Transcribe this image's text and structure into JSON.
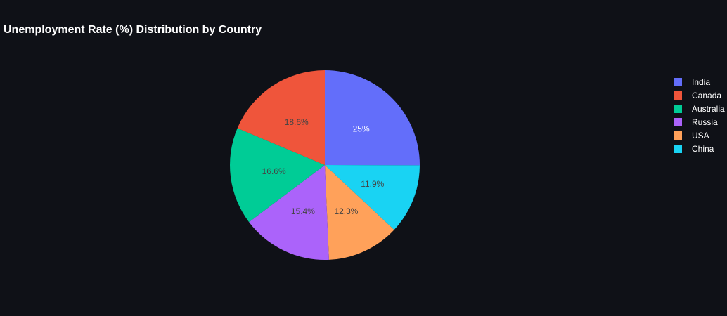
{
  "chart_data": {
    "type": "pie",
    "title": "Unemployment Rate (%) Distribution by Country",
    "slices": [
      {
        "label": "India",
        "percent": 25,
        "display": "25%",
        "color": "#636efa",
        "text_color": "#ffffff"
      },
      {
        "label": "China",
        "percent": 11.9,
        "display": "11.9%",
        "color": "#19d3f3",
        "text_color": "#444444"
      },
      {
        "label": "USA",
        "percent": 12.3,
        "display": "12.3%",
        "color": "#ffa15a",
        "text_color": "#444444"
      },
      {
        "label": "Russia",
        "percent": 15.4,
        "display": "15.4%",
        "color": "#ab63fa",
        "text_color": "#444444"
      },
      {
        "label": "Australia",
        "percent": 16.6,
        "display": "16.6%",
        "color": "#00cc96",
        "text_color": "#444444"
      },
      {
        "label": "Canada",
        "percent": 18.6,
        "display": "18.6%",
        "color": "#ef553b",
        "text_color": "#444444"
      }
    ],
    "legend": [
      "India",
      "Canada",
      "Australia",
      "Russia",
      "USA",
      "China"
    ],
    "legend_position": "right",
    "direction": "clockwise",
    "start": "top"
  }
}
